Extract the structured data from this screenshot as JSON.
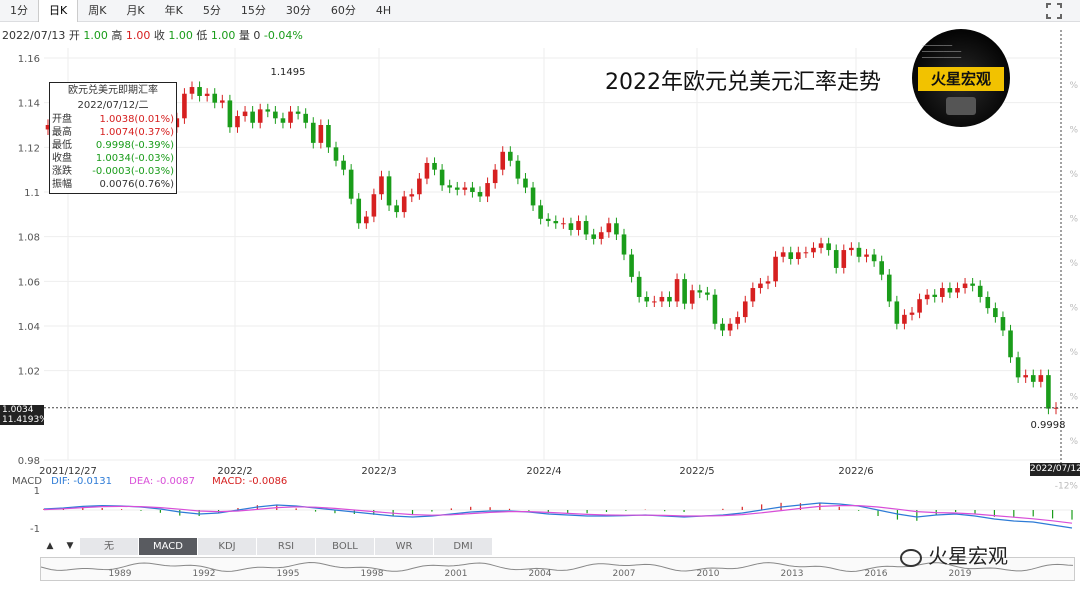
{
  "toolbar": {
    "tabs": [
      {
        "label": "1分"
      },
      {
        "label": "日K",
        "active": true
      },
      {
        "label": "周K"
      },
      {
        "label": "月K"
      },
      {
        "label": "年K"
      },
      {
        "label": "5分"
      },
      {
        "label": "15分"
      },
      {
        "label": "30分"
      },
      {
        "label": "60分"
      },
      {
        "label": "4H"
      }
    ]
  },
  "ohlc_line": {
    "date": "2022/07/13",
    "open_label": "开",
    "open": "1.00",
    "high_label": "高",
    "high": "1.00",
    "close_label": "收",
    "close": "1.00",
    "low_label": "低",
    "low": "1.00",
    "vol_label": "量",
    "vol": "0",
    "change": "-0.04%"
  },
  "tooltip": {
    "title": "欧元兑美元即期汇率",
    "date": "2022/07/12/二",
    "rows": [
      {
        "label": "开盘",
        "value": "1.0038(0.01%)",
        "color": "r"
      },
      {
        "label": "最高",
        "value": "1.0074(0.37%)",
        "color": "r"
      },
      {
        "label": "最低",
        "value": "0.9998(-0.39%)",
        "color": "g"
      },
      {
        "label": "收盘",
        "value": "1.0034(-0.03%)",
        "color": "g"
      },
      {
        "label": "涨跌",
        "value": "-0.0003(-0.03%)",
        "color": "g"
      },
      {
        "label": "振幅",
        "value": "0.0076(0.76%)",
        "color": ""
      }
    ]
  },
  "title": "2022年欧元兑美元汇率走势",
  "logo": {
    "text": "火星宏观"
  },
  "price_tag": {
    "price": "1.0034",
    "pct": "11.4193%"
  },
  "date_tag": "2022/07/12",
  "high_label": "1.1495",
  "low_label": "0.9998",
  "macd": {
    "title": "MACD",
    "dif_label": "DIF: -0.0131",
    "dea_label": "DEA: -0.0087",
    "macd_label": "MACD: -0.0086",
    "yticks": [
      "1",
      "-1"
    ]
  },
  "indicator_tabs": [
    {
      "label": "无"
    },
    {
      "label": "MACD",
      "active": true
    },
    {
      "label": "KDJ"
    },
    {
      "label": "RSI"
    },
    {
      "label": "BOLL"
    },
    {
      "label": "WR"
    },
    {
      "label": "DMI"
    }
  ],
  "navigator_years": [
    "1989",
    "1992",
    "1995",
    "1998",
    "2001",
    "2004",
    "2007",
    "2010",
    "2013",
    "2016",
    "2019"
  ],
  "watermark": "火星宏观",
  "colors": {
    "up": "#d62020",
    "down": "#1a9c1a",
    "dif": "#2d7bd6",
    "dea": "#d84ed8"
  },
  "chart_data": {
    "type": "candlestick",
    "title": "2022年欧元兑美元汇率走势",
    "ylim": [
      0.98,
      1.16
    ],
    "yticks": [
      "1.16",
      "1.14",
      "1.12",
      "1.1",
      "1.08",
      "1.06",
      "1.04",
      "1.02",
      "0.98"
    ],
    "xticks": [
      "2021/12/27",
      "2022/2",
      "2022/3",
      "2022/4",
      "2022/5",
      "2022/6"
    ],
    "right_ticks": [
      "%",
      "%",
      "%",
      "%",
      "%",
      "%",
      "%",
      "%",
      "%",
      "-12%"
    ],
    "closes": [
      1.13,
      1.131,
      1.134,
      1.128,
      1.133,
      1.136,
      1.13,
      1.134,
      1.141,
      1.136,
      1.134,
      1.133,
      1.127,
      1.117,
      1.114,
      1.125,
      1.129,
      1.133,
      1.144,
      1.147,
      1.143,
      1.144,
      1.14,
      1.141,
      1.129,
      1.134,
      1.136,
      1.131,
      1.137,
      1.136,
      1.133,
      1.131,
      1.136,
      1.135,
      1.131,
      1.122,
      1.13,
      1.12,
      1.114,
      1.11,
      1.097,
      1.086,
      1.089,
      1.099,
      1.107,
      1.094,
      1.091,
      1.098,
      1.099,
      1.106,
      1.113,
      1.11,
      1.103,
      1.102,
      1.101,
      1.102,
      1.1,
      1.098,
      1.104,
      1.11,
      1.118,
      1.114,
      1.106,
      1.102,
      1.094,
      1.088,
      1.087,
      1.086,
      1.086,
      1.083,
      1.087,
      1.081,
      1.079,
      1.082,
      1.086,
      1.081,
      1.072,
      1.062,
      1.053,
      1.051,
      1.051,
      1.053,
      1.051,
      1.061,
      1.05,
      1.056,
      1.055,
      1.054,
      1.041,
      1.038,
      1.041,
      1.044,
      1.051,
      1.057,
      1.059,
      1.06,
      1.071,
      1.073,
      1.07,
      1.073,
      1.073,
      1.075,
      1.077,
      1.074,
      1.066,
      1.074,
      1.075,
      1.071,
      1.072,
      1.069,
      1.063,
      1.051,
      1.041,
      1.045,
      1.046,
      1.052,
      1.054,
      1.053,
      1.057,
      1.055,
      1.057,
      1.059,
      1.058,
      1.053,
      1.048,
      1.044,
      1.038,
      1.026,
      1.017,
      1.018,
      1.015,
      1.018,
      1.003,
      1.0034
    ],
    "macd": {
      "dif": [
        0.05,
        0.1,
        0.18,
        0.22,
        0.2,
        0.15,
        0.05,
        -0.1,
        -0.2,
        -0.15,
        0.0,
        0.15,
        0.25,
        0.2,
        0.1,
        0.0,
        -0.1,
        -0.2,
        -0.3,
        -0.35,
        -0.3,
        -0.2,
        -0.1,
        -0.05,
        -0.05,
        -0.1,
        -0.2,
        -0.25,
        -0.3,
        -0.3,
        -0.28,
        -0.25,
        -0.3,
        -0.35,
        -0.3,
        -0.25,
        -0.15,
        0.0,
        0.15,
        0.25,
        0.35,
        0.3,
        0.2,
        0.0,
        -0.2,
        -0.35,
        -0.25,
        -0.2,
        -0.3,
        -0.45,
        -0.55,
        -0.6,
        -0.75,
        -0.9
      ],
      "dea": [
        0.02,
        0.06,
        0.12,
        0.17,
        0.18,
        0.17,
        0.12,
        0.04,
        -0.05,
        -0.08,
        -0.05,
        0.03,
        0.12,
        0.16,
        0.14,
        0.08,
        0.0,
        -0.08,
        -0.16,
        -0.23,
        -0.26,
        -0.24,
        -0.18,
        -0.12,
        -0.08,
        -0.08,
        -0.12,
        -0.17,
        -0.22,
        -0.25,
        -0.26,
        -0.26,
        -0.27,
        -0.3,
        -0.3,
        -0.28,
        -0.23,
        -0.14,
        -0.03,
        0.08,
        0.18,
        0.22,
        0.22,
        0.15,
        0.04,
        -0.08,
        -0.13,
        -0.15,
        -0.2,
        -0.28,
        -0.36,
        -0.44,
        -0.54,
        -0.66
      ]
    }
  }
}
